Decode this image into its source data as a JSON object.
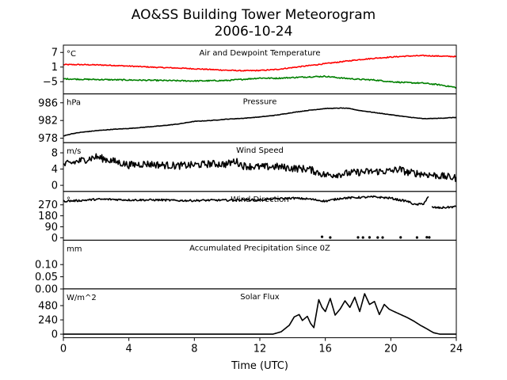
{
  "figure": {
    "title_line1": "AO&SS Building Tower Meteorogram",
    "title_line2": "2006-10-24",
    "xlabel": "Time (UTC)"
  },
  "chart_data": {
    "type": "line",
    "x_axis": {
      "min": 0,
      "max": 24,
      "ticks": [
        0,
        4,
        8,
        12,
        16,
        20,
        24
      ],
      "tick_labels": [
        "0",
        "4",
        "8",
        "12",
        "16",
        "20",
        "24"
      ]
    },
    "panels": [
      {
        "id": "temperature",
        "title": "Air and Dewpoint Temperature",
        "unit": "°C",
        "ylim": [
          -10,
          10
        ],
        "yticks": [
          7,
          1,
          -5
        ],
        "ytick_labels": [
          "7",
          "1",
          "−5"
        ],
        "series": [
          {
            "color": "#ff0000",
            "noise": 0.2,
            "x": [
              0,
              1,
              2,
              3,
              4,
              5,
              6,
              7,
              8,
              9,
              10,
              11,
              12,
              13,
              14,
              15,
              16,
              17,
              18,
              19,
              20,
              21,
              22,
              23,
              24
            ],
            "values": [
              2.0,
              2.0,
              1.9,
              1.7,
              1.4,
              1.1,
              0.8,
              0.6,
              0.3,
              0.0,
              -0.3,
              -0.5,
              -0.4,
              0.0,
              0.8,
              1.6,
              2.4,
              3.2,
              4.0,
              4.6,
              5.1,
              5.5,
              5.7,
              5.5,
              5.3
            ]
          },
          {
            "color": "#008000",
            "noise": 0.25,
            "x": [
              0,
              1,
              2,
              3,
              4,
              5,
              6,
              7,
              8,
              9,
              10,
              11,
              12,
              13,
              14,
              15,
              16,
              17,
              18,
              19,
              20,
              21,
              22,
              23,
              24
            ],
            "values": [
              -3.8,
              -4.0,
              -4.1,
              -4.2,
              -4.3,
              -4.4,
              -4.5,
              -4.6,
              -4.7,
              -4.6,
              -4.5,
              -4.0,
              -3.5,
              -3.6,
              -3.3,
              -3.0,
              -2.8,
              -3.5,
              -4.0,
              -4.3,
              -5.0,
              -5.4,
              -5.6,
              -6.3,
              -7.4
            ]
          }
        ]
      },
      {
        "id": "pressure",
        "title": "Pressure",
        "unit": "hPa",
        "ylim": [
          977,
          988
        ],
        "yticks": [
          986,
          982,
          978
        ],
        "ytick_labels": [
          "986",
          "982",
          "978"
        ],
        "series": [
          {
            "color": "#000000",
            "noise": 0.05,
            "x": [
              0,
              0.5,
              1,
              2,
              3,
              4,
              5,
              6,
              7,
              8,
              9,
              10,
              11,
              12,
              13,
              14,
              15,
              16,
              17,
              17.5,
              18,
              19,
              20,
              21,
              22,
              23,
              24
            ],
            "values": [
              978.5,
              979.0,
              979.3,
              979.7,
              980.0,
              980.2,
              980.5,
              980.8,
              981.2,
              981.8,
              982.0,
              982.3,
              982.5,
              982.8,
              983.2,
              983.8,
              984.3,
              984.7,
              984.8,
              984.7,
              984.3,
              983.8,
              983.3,
              982.8,
              982.4,
              982.5,
              982.7
            ]
          }
        ]
      },
      {
        "id": "wind_speed",
        "title": "Wind Speed",
        "unit": "m/s",
        "ylim": [
          -1.5,
          10.5
        ],
        "yticks": [
          8,
          4,
          0
        ],
        "ytick_labels": [
          "8",
          "4",
          "0"
        ],
        "series": [
          {
            "color": "#000000",
            "noise": 0.9,
            "x": [
              0,
              0.5,
              1,
              1.5,
              2,
              2.5,
              3,
              3.5,
              4,
              5,
              6,
              7,
              8,
              9,
              10,
              10.5,
              11,
              12,
              13,
              14,
              15,
              16,
              17,
              18,
              19,
              20,
              20.5,
              21,
              22,
              23,
              24
            ],
            "values": [
              5.0,
              5.5,
              6.0,
              6.5,
              7.0,
              6.5,
              6.0,
              5.5,
              5.0,
              5.3,
              5.0,
              4.8,
              5.0,
              5.3,
              5.2,
              6.0,
              4.8,
              4.5,
              4.6,
              4.2,
              4.0,
              2.5,
              2.8,
              3.2,
              3.4,
              3.5,
              4.0,
              3.2,
              2.8,
              2.3,
              1.8
            ]
          }
        ]
      },
      {
        "id": "wind_direction",
        "title": "Wind Direction",
        "unit": "°",
        "ylim": [
          -20,
          380
        ],
        "yticks": [
          270,
          180,
          90,
          0
        ],
        "ytick_labels": [
          "270",
          "180",
          "90",
          "0"
        ],
        "series": [
          {
            "color": "#000000",
            "noise": 8,
            "x": [
              0,
              1,
              2,
              3,
              4,
              5,
              6,
              7,
              8,
              9,
              10,
              11,
              12,
              13,
              14,
              15,
              16,
              17,
              18,
              19,
              20,
              20.5,
              21,
              21.5,
              22,
              22.3
            ],
            "values": [
              300,
              305,
              315,
              315,
              310,
              310,
              310,
              305,
              305,
              308,
              308,
              312,
              310,
              320,
              325,
              318,
              300,
              325,
              330,
              335,
              325,
              310,
              300,
              270,
              280,
              335
            ]
          },
          {
            "color": "#000000",
            "noise": 8,
            "x": [
              22.5,
              23,
              23.5,
              24
            ],
            "values": [
              250,
              245,
              250,
              255
            ]
          }
        ],
        "scatter": {
          "x": [
            15.8,
            16.3,
            18.0,
            18.3,
            18.7,
            19.2,
            19.5,
            20.6,
            21.6,
            22.2,
            22.35
          ],
          "values": [
            8,
            2,
            3,
            2,
            3,
            2,
            2,
            3,
            2,
            4,
            3
          ]
        }
      },
      {
        "id": "precipitation",
        "title": "Accumulated Precipitation Since 0Z",
        "unit": "mm",
        "ylim": [
          0,
          0.2
        ],
        "yticks": [
          0.1,
          0.05,
          0.0
        ],
        "ytick_labels": [
          "0.10",
          "0.05",
          "0.00"
        ],
        "series": [
          {
            "color": "#000000",
            "noise": 0,
            "x": [
              0,
              24
            ],
            "values": [
              0,
              0
            ]
          }
        ]
      },
      {
        "id": "solar",
        "title": "Solar Flux",
        "unit": "W/m^2",
        "ylim": [
          -60,
          760
        ],
        "yticks": [
          480,
          240,
          0
        ],
        "ytick_labels": [
          "480",
          "240",
          "0"
        ],
        "series": [
          {
            "color": "#000000",
            "noise": 0,
            "x": [
              0,
              12.8,
              13.3,
              13.8,
              14.1,
              14.4,
              14.6,
              14.9,
              15.1,
              15.3,
              15.6,
              15.8,
              16.0,
              16.3,
              16.6,
              16.9,
              17.2,
              17.5,
              17.8,
              18.1,
              18.4,
              18.7,
              19.0,
              19.3,
              19.6,
              19.9,
              20.2,
              20.6,
              21.0,
              21.4,
              21.8,
              22.2,
              22.6,
              23.0,
              24
            ],
            "values": [
              0,
              0,
              40,
              150,
              290,
              330,
              230,
              300,
              180,
              110,
              580,
              450,
              380,
              600,
              320,
              420,
              560,
              450,
              620,
              380,
              680,
              500,
              550,
              330,
              500,
              420,
              380,
              330,
              280,
              220,
              150,
              90,
              25,
              0,
              0
            ]
          }
        ]
      }
    ]
  }
}
